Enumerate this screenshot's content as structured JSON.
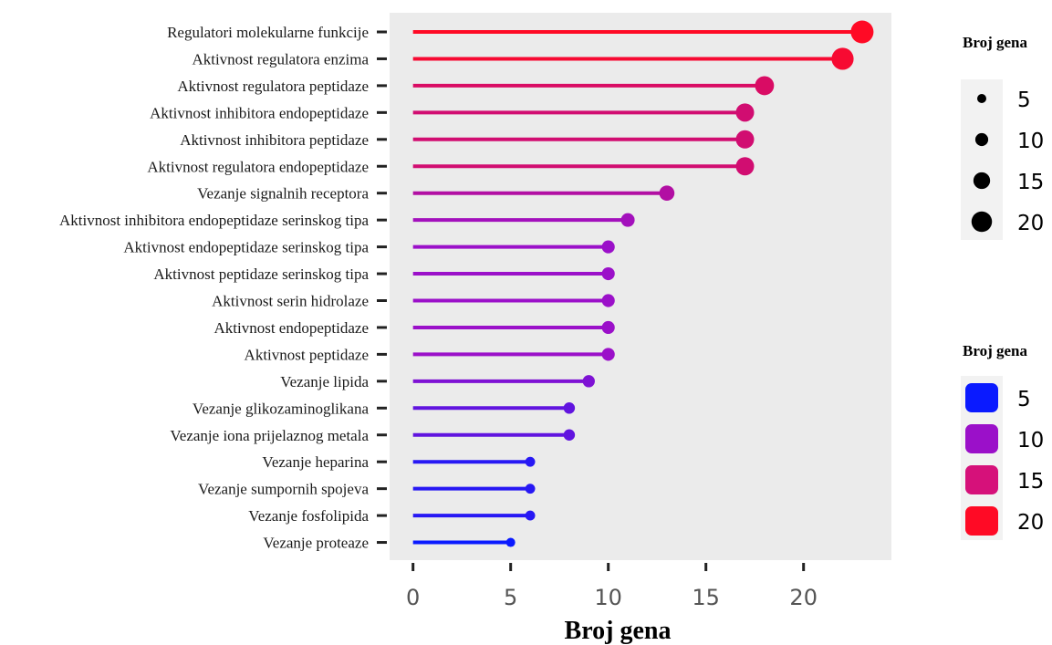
{
  "chart_data": {
    "type": "lollipop",
    "categories": [
      "Regulatori molekularne funkcije",
      "Aktivnost regulatora enzima",
      "Aktivnost regulatora peptidaze",
      "Aktivnost inhibitora endopeptidaze",
      "Aktivnost inhibitora peptidaze",
      "Aktivnost regulatora endopeptidaze",
      "Vezanje signalnih receptora",
      "Aktivnost inhibitora endopeptidaze serinskog tipa",
      "Aktivnost endopeptidaze serinskog tipa",
      "Aktivnost peptidaze serinskog tipa",
      "Aktivnost serin hidrolaze",
      "Aktivnost endopeptidaze",
      "Aktivnost peptidaze",
      "Vezanje lipida",
      "Vezanje glikozaminoglikana",
      "Vezanje iona prijelaznog metala",
      "Vezanje heparina",
      "Vezanje sumpornih spojeva",
      "Vezanje fosfolipida",
      "Vezanje proteaze"
    ],
    "values": [
      23,
      22,
      18,
      17,
      17,
      17,
      13,
      11,
      10,
      10,
      10,
      10,
      10,
      9,
      8,
      8,
      6,
      6,
      6,
      5
    ],
    "xlabel": "Broj gena",
    "ylabel": "",
    "xlim": [
      -1.2,
      24.5
    ],
    "xticks": [
      0,
      5,
      10,
      15,
      20
    ],
    "grid": false,
    "colors": {
      "low": "#0a1aff",
      "mid": "#9b10c9",
      "high": "#ff0a25",
      "panel": "#ebebeb"
    },
    "legend_size": {
      "title": "Broj gena",
      "entries": [
        5,
        10,
        15,
        20
      ]
    },
    "legend_color": {
      "title": "Broj gena",
      "entries": [
        {
          "value": 5,
          "color": "#0a1aff"
        },
        {
          "value": 10,
          "color": "#9b10c9"
        },
        {
          "value": 15,
          "color": "#d6117a"
        },
        {
          "value": 20,
          "color": "#ff0a25"
        }
      ]
    }
  }
}
